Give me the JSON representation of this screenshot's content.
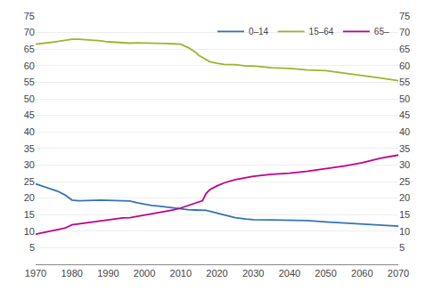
{
  "chart_data": {
    "type": "line",
    "series": [
      {
        "name": "0–14",
        "color": "#3273b5",
        "x": [
          1970,
          1972,
          1974,
          1976,
          1978,
          1980,
          1982,
          1984,
          1986,
          1988,
          1990,
          1992,
          1994,
          1996,
          1998,
          2000,
          2002,
          2004,
          2006,
          2008,
          2010,
          2012,
          2014,
          2016,
          2017,
          2018,
          2020,
          2022,
          2025,
          2028,
          2030,
          2035,
          2040,
          2045,
          2050,
          2055,
          2060,
          2065,
          2070
        ],
        "values": [
          24.3,
          23.5,
          22.8,
          22.1,
          21.0,
          19.4,
          19.2,
          19.3,
          19.5,
          19.4,
          19.3,
          19.3,
          19.2,
          19.1,
          18.6,
          18.1,
          17.8,
          17.6,
          17.3,
          17.0,
          16.6,
          16.5,
          16.4,
          16.3,
          16.3,
          16.0,
          15.4,
          14.8,
          14.1,
          13.7,
          13.5,
          13.4,
          13.4,
          13.2,
          12.8,
          12.5,
          12.2,
          11.7,
          11.5
        ]
      },
      {
        "name": "15–64",
        "color": "#9db42d",
        "x": [
          1970,
          1972,
          1974,
          1976,
          1978,
          1980,
          1982,
          1984,
          1986,
          1988,
          1990,
          1992,
          1994,
          1996,
          1998,
          2000,
          2002,
          2004,
          2006,
          2008,
          2010,
          2012,
          2013,
          2014,
          2015,
          2016,
          2017,
          2018,
          2020,
          2022,
          2025,
          2028,
          2030,
          2035,
          2040,
          2045,
          2050,
          2055,
          2060,
          2065,
          2070
        ],
        "values": [
          66.5,
          66.7,
          67.0,
          67.3,
          67.7,
          68.0,
          68.0,
          67.9,
          67.7,
          67.5,
          67.2,
          67.0,
          66.9,
          66.8,
          66.9,
          66.9,
          66.8,
          66.8,
          66.7,
          66.6,
          66.5,
          65.5,
          64.8,
          64.1,
          63.1,
          62.5,
          61.9,
          61.2,
          60.7,
          60.4,
          60.3,
          59.9,
          59.9,
          59.4,
          59.2,
          58.7,
          58.5,
          57.8,
          57.0,
          56.3,
          55.5
        ]
      },
      {
        "name": "65–",
        "color": "#c0008a",
        "x": [
          1970,
          1972,
          1974,
          1976,
          1978,
          1980,
          1982,
          1984,
          1986,
          1988,
          1990,
          1992,
          1994,
          1996,
          1998,
          2000,
          2002,
          2004,
          2006,
          2008,
          2010,
          2012,
          2014,
          2016,
          2017,
          2018,
          2020,
          2022,
          2025,
          2028,
          2030,
          2035,
          2040,
          2045,
          2050,
          2055,
          2060,
          2065,
          2070
        ],
        "values": [
          9.1,
          9.6,
          10.0,
          10.4,
          10.9,
          11.9,
          12.2,
          12.5,
          12.8,
          13.1,
          13.5,
          13.8,
          14.0,
          14.1,
          14.5,
          14.9,
          15.2,
          15.5,
          15.9,
          16.4,
          17.0,
          17.8,
          18.5,
          19.2,
          21.4,
          22.5,
          23.7,
          24.6,
          25.6,
          26.2,
          26.6,
          27.2,
          27.5,
          28.1,
          28.8,
          29.7,
          30.7,
          32.0,
          33.0
        ]
      }
    ],
    "xlim": [
      1970,
      2070
    ],
    "xticks": [
      1970,
      1980,
      1990,
      2000,
      2010,
      2020,
      2030,
      2040,
      2050,
      2060,
      2070
    ],
    "ylim": [
      0,
      75
    ],
    "yticks": [
      5,
      10,
      15,
      20,
      25,
      30,
      35,
      40,
      45,
      50,
      55,
      60,
      65,
      70,
      75
    ],
    "y2lim": [
      0,
      75
    ],
    "y2ticks": [
      5,
      10,
      15,
      20,
      25,
      30,
      35,
      40,
      45,
      50,
      55,
      60,
      65,
      70,
      75
    ],
    "grid": true,
    "legend": "upper right"
  }
}
